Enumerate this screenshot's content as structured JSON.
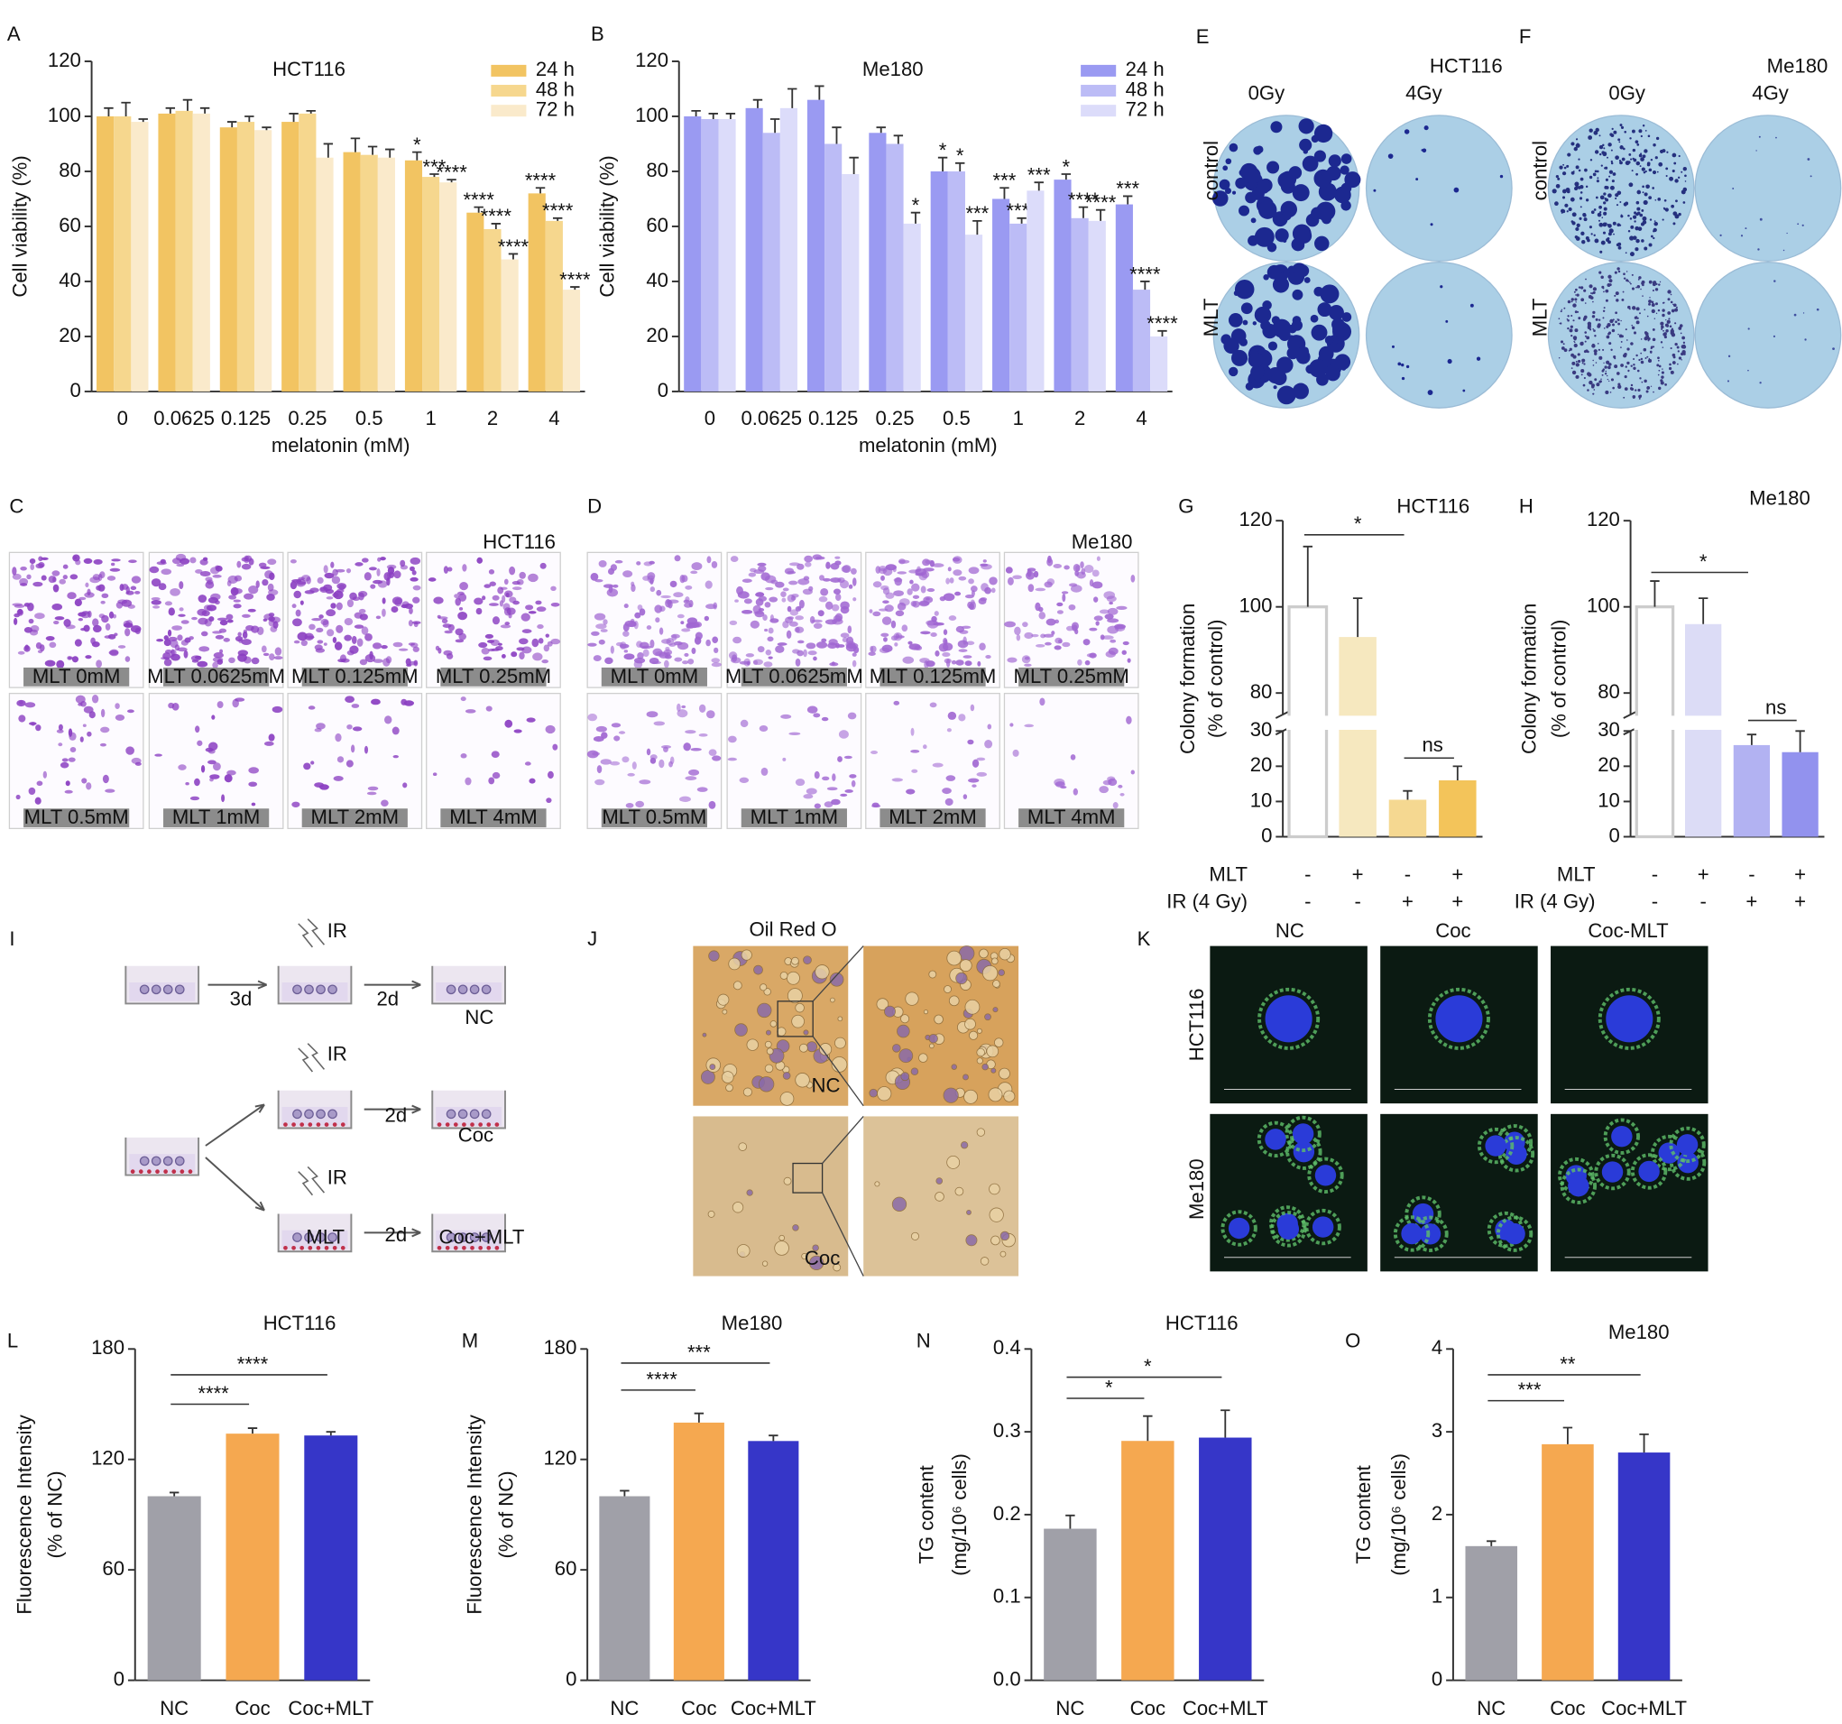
{
  "chart_data": [
    {
      "type": "bar",
      "panel": "A",
      "title": "HCT116",
      "xlabel": "melatonin (mM)",
      "ylabel": [
        "Cell viability (%)"
      ],
      "categories": [
        "0",
        "0.0625",
        "0.125",
        "0.25",
        "0.5",
        "1",
        "2",
        "4"
      ],
      "ylim": [
        0,
        120
      ],
      "yticks": [
        0,
        20,
        40,
        60,
        80,
        100,
        120
      ],
      "legend": "upper right",
      "series": [
        {
          "name": "24 h",
          "color": "#f2c462",
          "values": [
            100,
            101,
            96,
            98,
            87,
            84,
            65,
            72
          ],
          "errors": [
            3,
            2,
            2,
            3,
            5,
            3,
            2,
            2
          ],
          "significance": [
            null,
            null,
            null,
            null,
            null,
            "*",
            "****",
            "****"
          ]
        },
        {
          "name": "48 h",
          "color": "#f6d78e",
          "values": [
            100,
            102,
            98,
            101,
            86,
            78,
            59,
            62
          ],
          "errors": [
            5,
            4,
            2,
            1,
            3,
            1,
            2,
            1
          ],
          "significance": [
            null,
            null,
            null,
            null,
            null,
            "***",
            "****",
            "****"
          ]
        },
        {
          "name": "72 h",
          "color": "#faeacb",
          "values": [
            98,
            101,
            95,
            85,
            85,
            76,
            48,
            37
          ],
          "errors": [
            1,
            2,
            1,
            5,
            3,
            1,
            2,
            1
          ],
          "significance": [
            null,
            null,
            null,
            null,
            null,
            "****",
            "****",
            "****"
          ]
        }
      ]
    },
    {
      "type": "bar",
      "panel": "B",
      "title": "Me180",
      "xlabel": "melatonin (mM)",
      "ylabel": [
        "Cell viability (%)"
      ],
      "categories": [
        "0",
        "0.0625",
        "0.125",
        "0.25",
        "0.5",
        "1",
        "2",
        "4"
      ],
      "ylim": [
        0,
        120
      ],
      "yticks": [
        0,
        20,
        40,
        60,
        80,
        100,
        120
      ],
      "legend": "upper right",
      "series": [
        {
          "name": "24 h",
          "color": "#9a9af2",
          "values": [
            100,
            103,
            106,
            94,
            80,
            70,
            77,
            68
          ],
          "errors": [
            2,
            3,
            5,
            2,
            5,
            4,
            2,
            3
          ],
          "significance": [
            null,
            null,
            null,
            null,
            "*",
            "***",
            "*",
            "***"
          ]
        },
        {
          "name": "48 h",
          "color": "#bcbcf6",
          "values": [
            99,
            94,
            90,
            90,
            80,
            61,
            63,
            37
          ],
          "errors": [
            2,
            5,
            6,
            3,
            3,
            2,
            4,
            3
          ],
          "significance": [
            null,
            null,
            null,
            null,
            "*",
            "****",
            "****",
            "****"
          ]
        },
        {
          "name": "72 h",
          "color": "#dcdcfa",
          "values": [
            99,
            103,
            79,
            61,
            57,
            73,
            62,
            20
          ],
          "errors": [
            2,
            7,
            6,
            4,
            5,
            3,
            4,
            2
          ],
          "significance": [
            null,
            null,
            null,
            "*",
            "***",
            "***",
            "****",
            "****"
          ]
        }
      ]
    },
    {
      "type": "bar",
      "panel": "G",
      "title": "HCT116",
      "ylabel": [
        "Colony formation",
        "(% of control)"
      ],
      "rows": [
        {
          "name": "MLT",
          "values": [
            "-",
            "+",
            "-",
            "+"
          ]
        },
        {
          "name": "IR (4 Gy)",
          "values": [
            "-",
            "-",
            "+",
            "+"
          ]
        }
      ],
      "values": [
        100,
        93,
        10.5,
        16
      ],
      "errors": [
        14,
        9,
        2.5,
        4
      ],
      "colors": [
        "#ffffff",
        "#f6e8bf",
        "#f5d891",
        "#f3c45a"
      ],
      "edgecolors": [
        "#cccccc",
        null,
        null,
        null
      ],
      "ylim": [
        0,
        120
      ],
      "axis_break": [
        30,
        75
      ],
      "yticks": [
        0,
        10,
        20,
        30,
        80,
        100,
        120
      ],
      "comparisons": [
        {
          "between": [
            0,
            2
          ],
          "label": "*"
        },
        {
          "between": [
            2,
            3
          ],
          "label": "ns"
        }
      ]
    },
    {
      "type": "bar",
      "panel": "H",
      "title": "Me180",
      "ylabel": [
        "Colony formation",
        "(% of control)"
      ],
      "rows": [
        {
          "name": "MLT",
          "values": [
            "-",
            "+",
            "-",
            "+"
          ]
        },
        {
          "name": "IR (4 Gy)",
          "values": [
            "-",
            "-",
            "+",
            "+"
          ]
        }
      ],
      "values": [
        100,
        96,
        26,
        24
      ],
      "errors": [
        6,
        6,
        3,
        6
      ],
      "colors": [
        "#ffffff",
        "#dcdcf6",
        "#b2b2f2",
        "#9292ee"
      ],
      "edgecolors": [
        "#cccccc",
        null,
        null,
        null
      ],
      "ylim": [
        0,
        120
      ],
      "axis_break": [
        30,
        75
      ],
      "yticks": [
        0,
        10,
        20,
        30,
        80,
        100,
        120
      ],
      "comparisons": [
        {
          "between": [
            0,
            2
          ],
          "label": "*"
        },
        {
          "between": [
            2,
            3
          ],
          "label": "ns"
        }
      ]
    },
    {
      "type": "bar",
      "panel": "L",
      "title": "HCT116",
      "ylabel": [
        "Fluorescence Intensity",
        "(% of NC)"
      ],
      "categories": [
        "NC",
        "Coc",
        "Coc+MLT"
      ],
      "values": [
        100,
        134,
        133
      ],
      "errors": [
        2,
        3,
        2
      ],
      "colors": [
        "#a0a0a8",
        "#f5a850",
        "#3636c8"
      ],
      "ylim": [
        0,
        180
      ],
      "yticks": [
        0,
        60,
        120,
        180
      ],
      "comparisons": [
        {
          "between": [
            0,
            1
          ],
          "label": "****"
        },
        {
          "between": [
            0,
            2
          ],
          "label": "****"
        }
      ]
    },
    {
      "type": "bar",
      "panel": "M",
      "title": "Me180",
      "ylabel": [
        "Fluorescence Intensity",
        "(% of NC)"
      ],
      "categories": [
        "NC",
        "Coc",
        "Coc+MLT"
      ],
      "values": [
        100,
        140,
        130
      ],
      "errors": [
        3,
        5,
        3
      ],
      "colors": [
        "#a0a0a8",
        "#f5a850",
        "#3636c8"
      ],
      "ylim": [
        0,
        180
      ],
      "yticks": [
        0,
        60,
        120,
        180
      ],
      "comparisons": [
        {
          "between": [
            0,
            1
          ],
          "label": "****"
        },
        {
          "between": [
            0,
            2
          ],
          "label": "***"
        }
      ]
    },
    {
      "type": "bar",
      "panel": "N",
      "title": "HCT116",
      "ylabel": [
        "TG content",
        "(mg/10⁶ cells)"
      ],
      "categories": [
        "NC",
        "Coc",
        "Coc+MLT"
      ],
      "values": [
        0.183,
        0.289,
        0.293
      ],
      "errors": [
        0.016,
        0.03,
        0.033
      ],
      "colors": [
        "#a0a0a8",
        "#f5a850",
        "#3636c8"
      ],
      "ylim": [
        0,
        0.4
      ],
      "yticks": [
        {
          "value": 0,
          "label": "0.0"
        },
        0.1,
        0.2,
        0.3,
        0.4
      ],
      "comparisons": [
        {
          "between": [
            0,
            1
          ],
          "label": "*"
        },
        {
          "between": [
            0,
            2
          ],
          "label": "*"
        }
      ]
    },
    {
      "type": "bar",
      "panel": "O",
      "title": "Me180",
      "ylabel": [
        "TG content",
        "(mg/10⁶ cells)"
      ],
      "categories": [
        "NC",
        "Coc",
        "Coc+MLT"
      ],
      "values": [
        1.62,
        2.85,
        2.75
      ],
      "errors": [
        0.06,
        0.2,
        0.22
      ],
      "colors": [
        "#a0a0a8",
        "#f5a850",
        "#3636c8"
      ],
      "ylim": [
        0,
        4
      ],
      "yticks": [
        0,
        1,
        2,
        3,
        4
      ],
      "comparisons": [
        {
          "between": [
            0,
            1
          ],
          "label": "***"
        },
        {
          "between": [
            0,
            2
          ],
          "label": "**"
        }
      ]
    }
  ],
  "figure": {
    "E": {
      "letter": "E",
      "title": "HCT116",
      "columns": [
        "0Gy",
        "4Gy"
      ],
      "rows": [
        "control",
        "MLT"
      ]
    },
    "F": {
      "letter": "F",
      "title": "Me180",
      "columns": [
        "0Gy",
        "4Gy"
      ],
      "rows": [
        "control",
        "MLT"
      ]
    },
    "C": {
      "letter": "C",
      "title": "HCT116",
      "labels": [
        "MLT 0mM",
        "MLT 0.0625mM",
        "MLT 0.125mM",
        "MLT 0.25mM",
        "MLT 0.5mM",
        "MLT 1mM",
        "MLT 2mM",
        "MLT 4mM"
      ]
    },
    "D": {
      "letter": "D",
      "title": "Me180",
      "labels": [
        "MLT 0mM",
        "MLT 0.0625mM",
        "MLT 0.125mM",
        "MLT 0.25mM",
        "MLT 0.5mM",
        "MLT 1mM",
        "MLT 2mM",
        "MLT 4mM"
      ]
    },
    "I": {
      "letter": "I",
      "labels": [
        "IR",
        "3d",
        "2d",
        "NC",
        "IR",
        "2d",
        "Coc",
        "IR",
        "MLT",
        "2d",
        "Coc+MLT"
      ]
    },
    "J": {
      "letter": "J",
      "title": "Oil Red O",
      "labels": [
        "NC",
        "Coc"
      ]
    },
    "K": {
      "letter": "K",
      "columns": [
        "NC",
        "Coc",
        "Coc-MLT"
      ],
      "rows": [
        "HCT116",
        "Me180"
      ]
    }
  }
}
